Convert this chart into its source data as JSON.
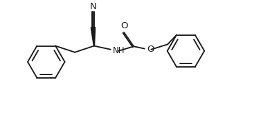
{
  "bg_color": "#ffffff",
  "line_color": "#1a1a1a",
  "line_width": 1.35,
  "font_size": 8.5,
  "figsize": [
    3.9,
    1.74
  ],
  "dpi": 100,
  "xlim": [
    0.0,
    10.0
  ],
  "ylim": [
    0.0,
    4.5
  ]
}
